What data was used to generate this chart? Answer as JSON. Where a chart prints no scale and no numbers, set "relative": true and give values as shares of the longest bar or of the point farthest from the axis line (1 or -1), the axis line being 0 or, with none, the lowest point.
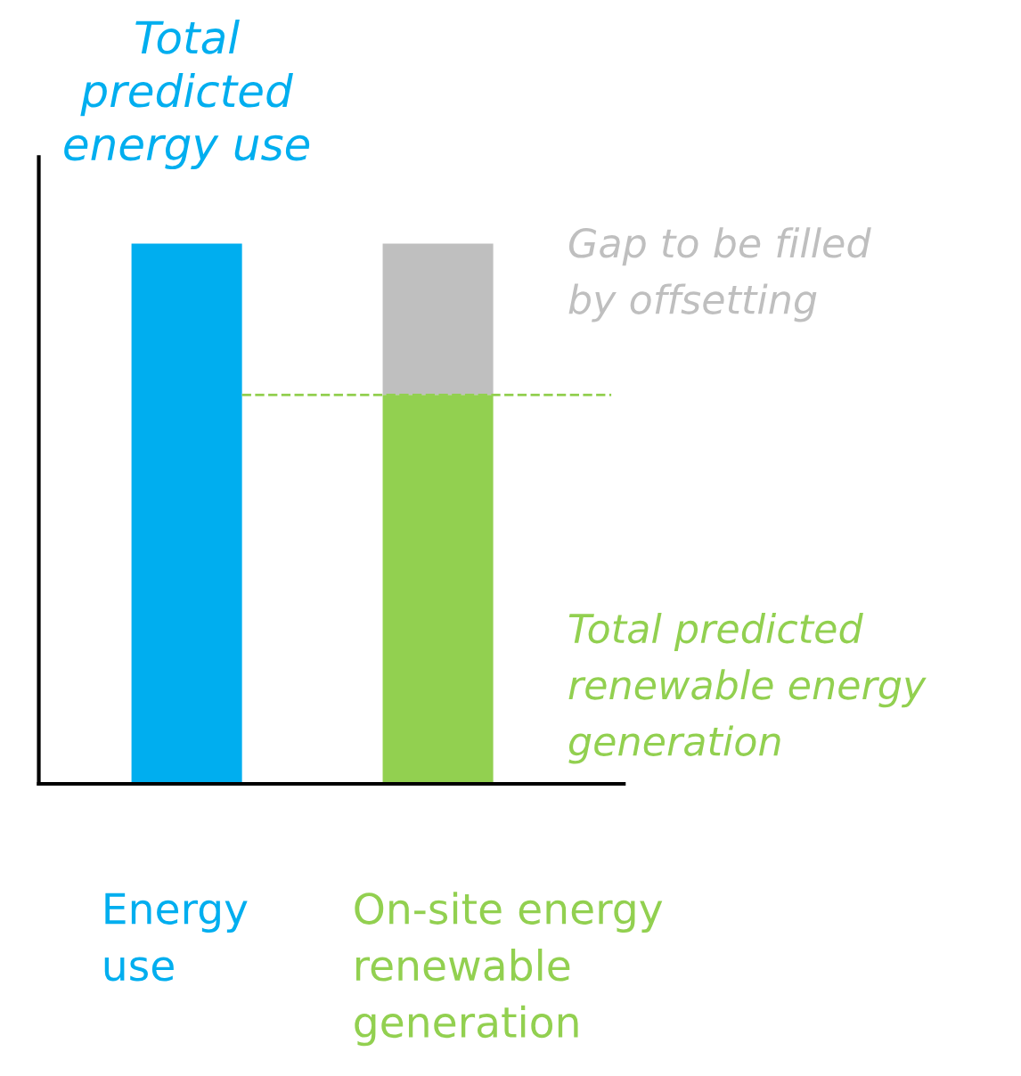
{
  "chart_data": {
    "type": "bar",
    "relative": true,
    "stacked": true,
    "categories": [
      "Energy\nuse",
      "On-site energy\nrenewable\ngeneration"
    ],
    "series": [
      {
        "colors": [
          "#00aeef",
          "#92d050"
        ],
        "values": [
          1,
          0.72
        ]
      },
      {
        "color": "#bfbfbf",
        "values": [
          null,
          0.28
        ]
      }
    ],
    "ref_lines": [
      {
        "axis": "y",
        "value": 0.72,
        "color": "#92d050",
        "line_style": "dashed"
      }
    ],
    "annotations": [
      "Total\npredicted\nenergy use",
      "Gap to be filled\nby offsetting",
      "Total predicted\nrenewable energy\ngeneration"
    ]
  }
}
